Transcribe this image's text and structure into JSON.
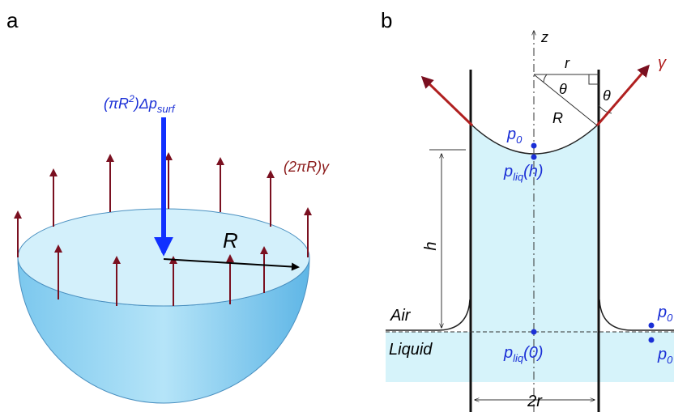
{
  "panels": {
    "a": {
      "label": "a",
      "pressure_label": {
        "pre": "(πR",
        "sup": "2",
        "mid": ")Δp",
        "sub": "surf"
      },
      "tension_label": "(2πR)γ",
      "radius_label": "R"
    },
    "b": {
      "label": "b",
      "axis_label": "z",
      "r_label": "r",
      "theta_labels": [
        "θ",
        "θ"
      ],
      "radius_label": "R",
      "gamma_label": "γ",
      "p0_top": {
        "main": "p",
        "sub": "0"
      },
      "pliq_h": {
        "main": "p",
        "sub": "liq",
        "rest": "(h)"
      },
      "h_label": "h",
      "air_label": "Air",
      "liquid_label": "Liquid",
      "pliq_0": {
        "main": "p",
        "sub": "liq",
        "rest": "(0)"
      },
      "p0_right_upper": {
        "main": "p",
        "sub": "0"
      },
      "p0_right_lower": {
        "main": "p",
        "sub": "0"
      },
      "width_label": "2r"
    }
  }
}
